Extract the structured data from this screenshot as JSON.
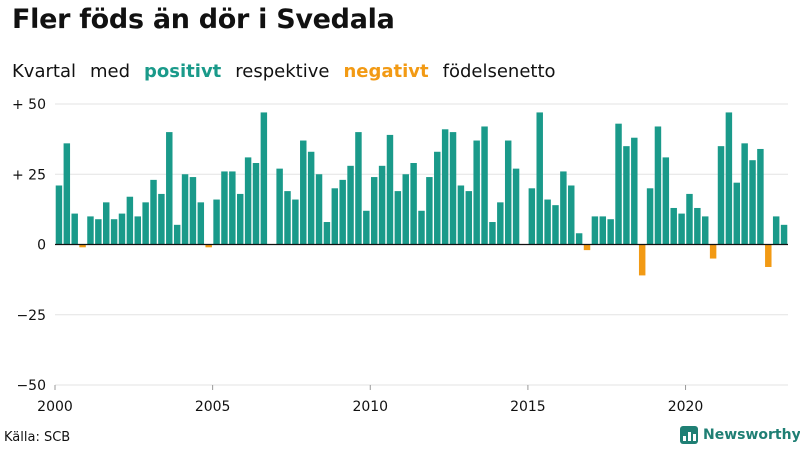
{
  "title": "Fler föds än dör i Svedala",
  "subtitle": {
    "part1": "Kvartal",
    "part2": "med",
    "positive": "positivt",
    "part3": "respektive",
    "negative": "negativt",
    "part4": "födelsenetto"
  },
  "source": "Källa: SCB",
  "brand": "Newsworthy",
  "colors": {
    "positive": "#1a9a8a",
    "negative": "#f29a14",
    "grid": "#e3e3e3",
    "axis": "#111111"
  },
  "chart_data": {
    "type": "bar",
    "x_start": "2000 Q1",
    "ylim": [
      -50,
      50
    ],
    "y_ticks": [
      {
        "value": 50,
        "label": "+ 50"
      },
      {
        "value": 25,
        "label": "+ 25"
      },
      {
        "value": 0,
        "label": "0"
      },
      {
        "value": -25,
        "label": "−25"
      },
      {
        "value": -50,
        "label": "−50"
      }
    ],
    "x_ticks": [
      {
        "year": 2000,
        "label": "2000"
      },
      {
        "year": 2005,
        "label": "2005"
      },
      {
        "year": 2010,
        "label": "2010"
      },
      {
        "year": 2015,
        "label": "2015"
      },
      {
        "year": 2020,
        "label": "2020"
      }
    ],
    "values": [
      21,
      36,
      11,
      -1,
      10,
      9,
      15,
      9,
      11,
      17,
      10,
      15,
      23,
      18,
      40,
      7,
      25,
      24,
      15,
      -1,
      16,
      26,
      26,
      18,
      31,
      29,
      47,
      0,
      27,
      19,
      16,
      37,
      33,
      25,
      8,
      20,
      23,
      28,
      40,
      12,
      24,
      28,
      39,
      19,
      25,
      29,
      12,
      24,
      33,
      41,
      40,
      21,
      19,
      37,
      42,
      8,
      15,
      37,
      27,
      0,
      20,
      47,
      16,
      14,
      26,
      21,
      4,
      -2,
      10,
      10,
      9,
      43,
      35,
      38,
      -11,
      20,
      42,
      31,
      13,
      11,
      18,
      13,
      10,
      -5,
      35,
      47,
      22,
      36,
      30,
      34,
      -8,
      10,
      7
    ]
  }
}
